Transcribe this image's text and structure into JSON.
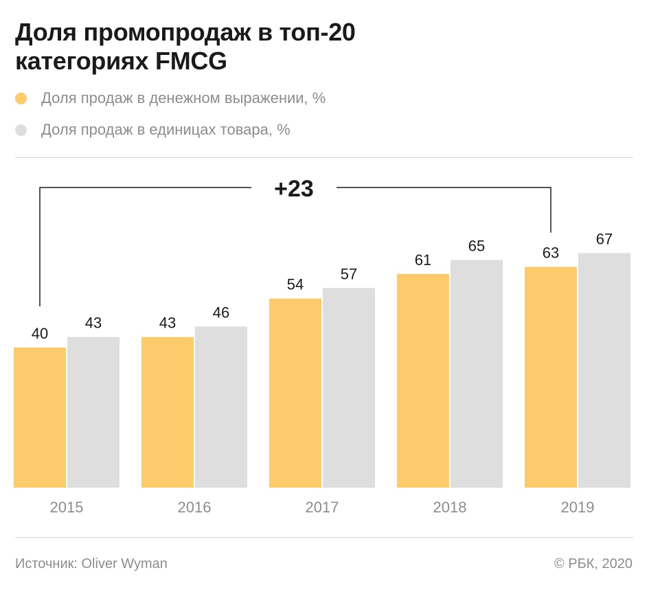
{
  "title": [
    "Доля промопродаж в топ-20",
    "категориях FMCG"
  ],
  "legend": [
    {
      "label": "Доля продаж в денежном выражении, %",
      "color": "#fdcb6b"
    },
    {
      "label": "Доля продаж в единицах товара, %",
      "color": "#dedede"
    }
  ],
  "chart_data": {
    "type": "bar",
    "categories": [
      "2015",
      "2016",
      "2017",
      "2018",
      "2019"
    ],
    "series": [
      {
        "name": "Доля продаж в денежном выражении, %",
        "values": [
          40,
          43,
          54,
          61,
          63
        ],
        "color": "#fdcb6b"
      },
      {
        "name": "Доля продаж в единицах товара, %",
        "values": [
          43,
          46,
          57,
          65,
          67
        ],
        "color": "#dedede"
      }
    ],
    "data_labels": true,
    "ylim": [
      0,
      100
    ],
    "grid": false,
    "legend_position": "top-left",
    "annotation": {
      "text": "+23",
      "from_category": "2015",
      "from_series": 0,
      "to_category": "2019",
      "to_series": 0
    }
  },
  "footer": {
    "source": "Источник: Oliver Wyman",
    "copyright": "© РБК, 2020"
  }
}
